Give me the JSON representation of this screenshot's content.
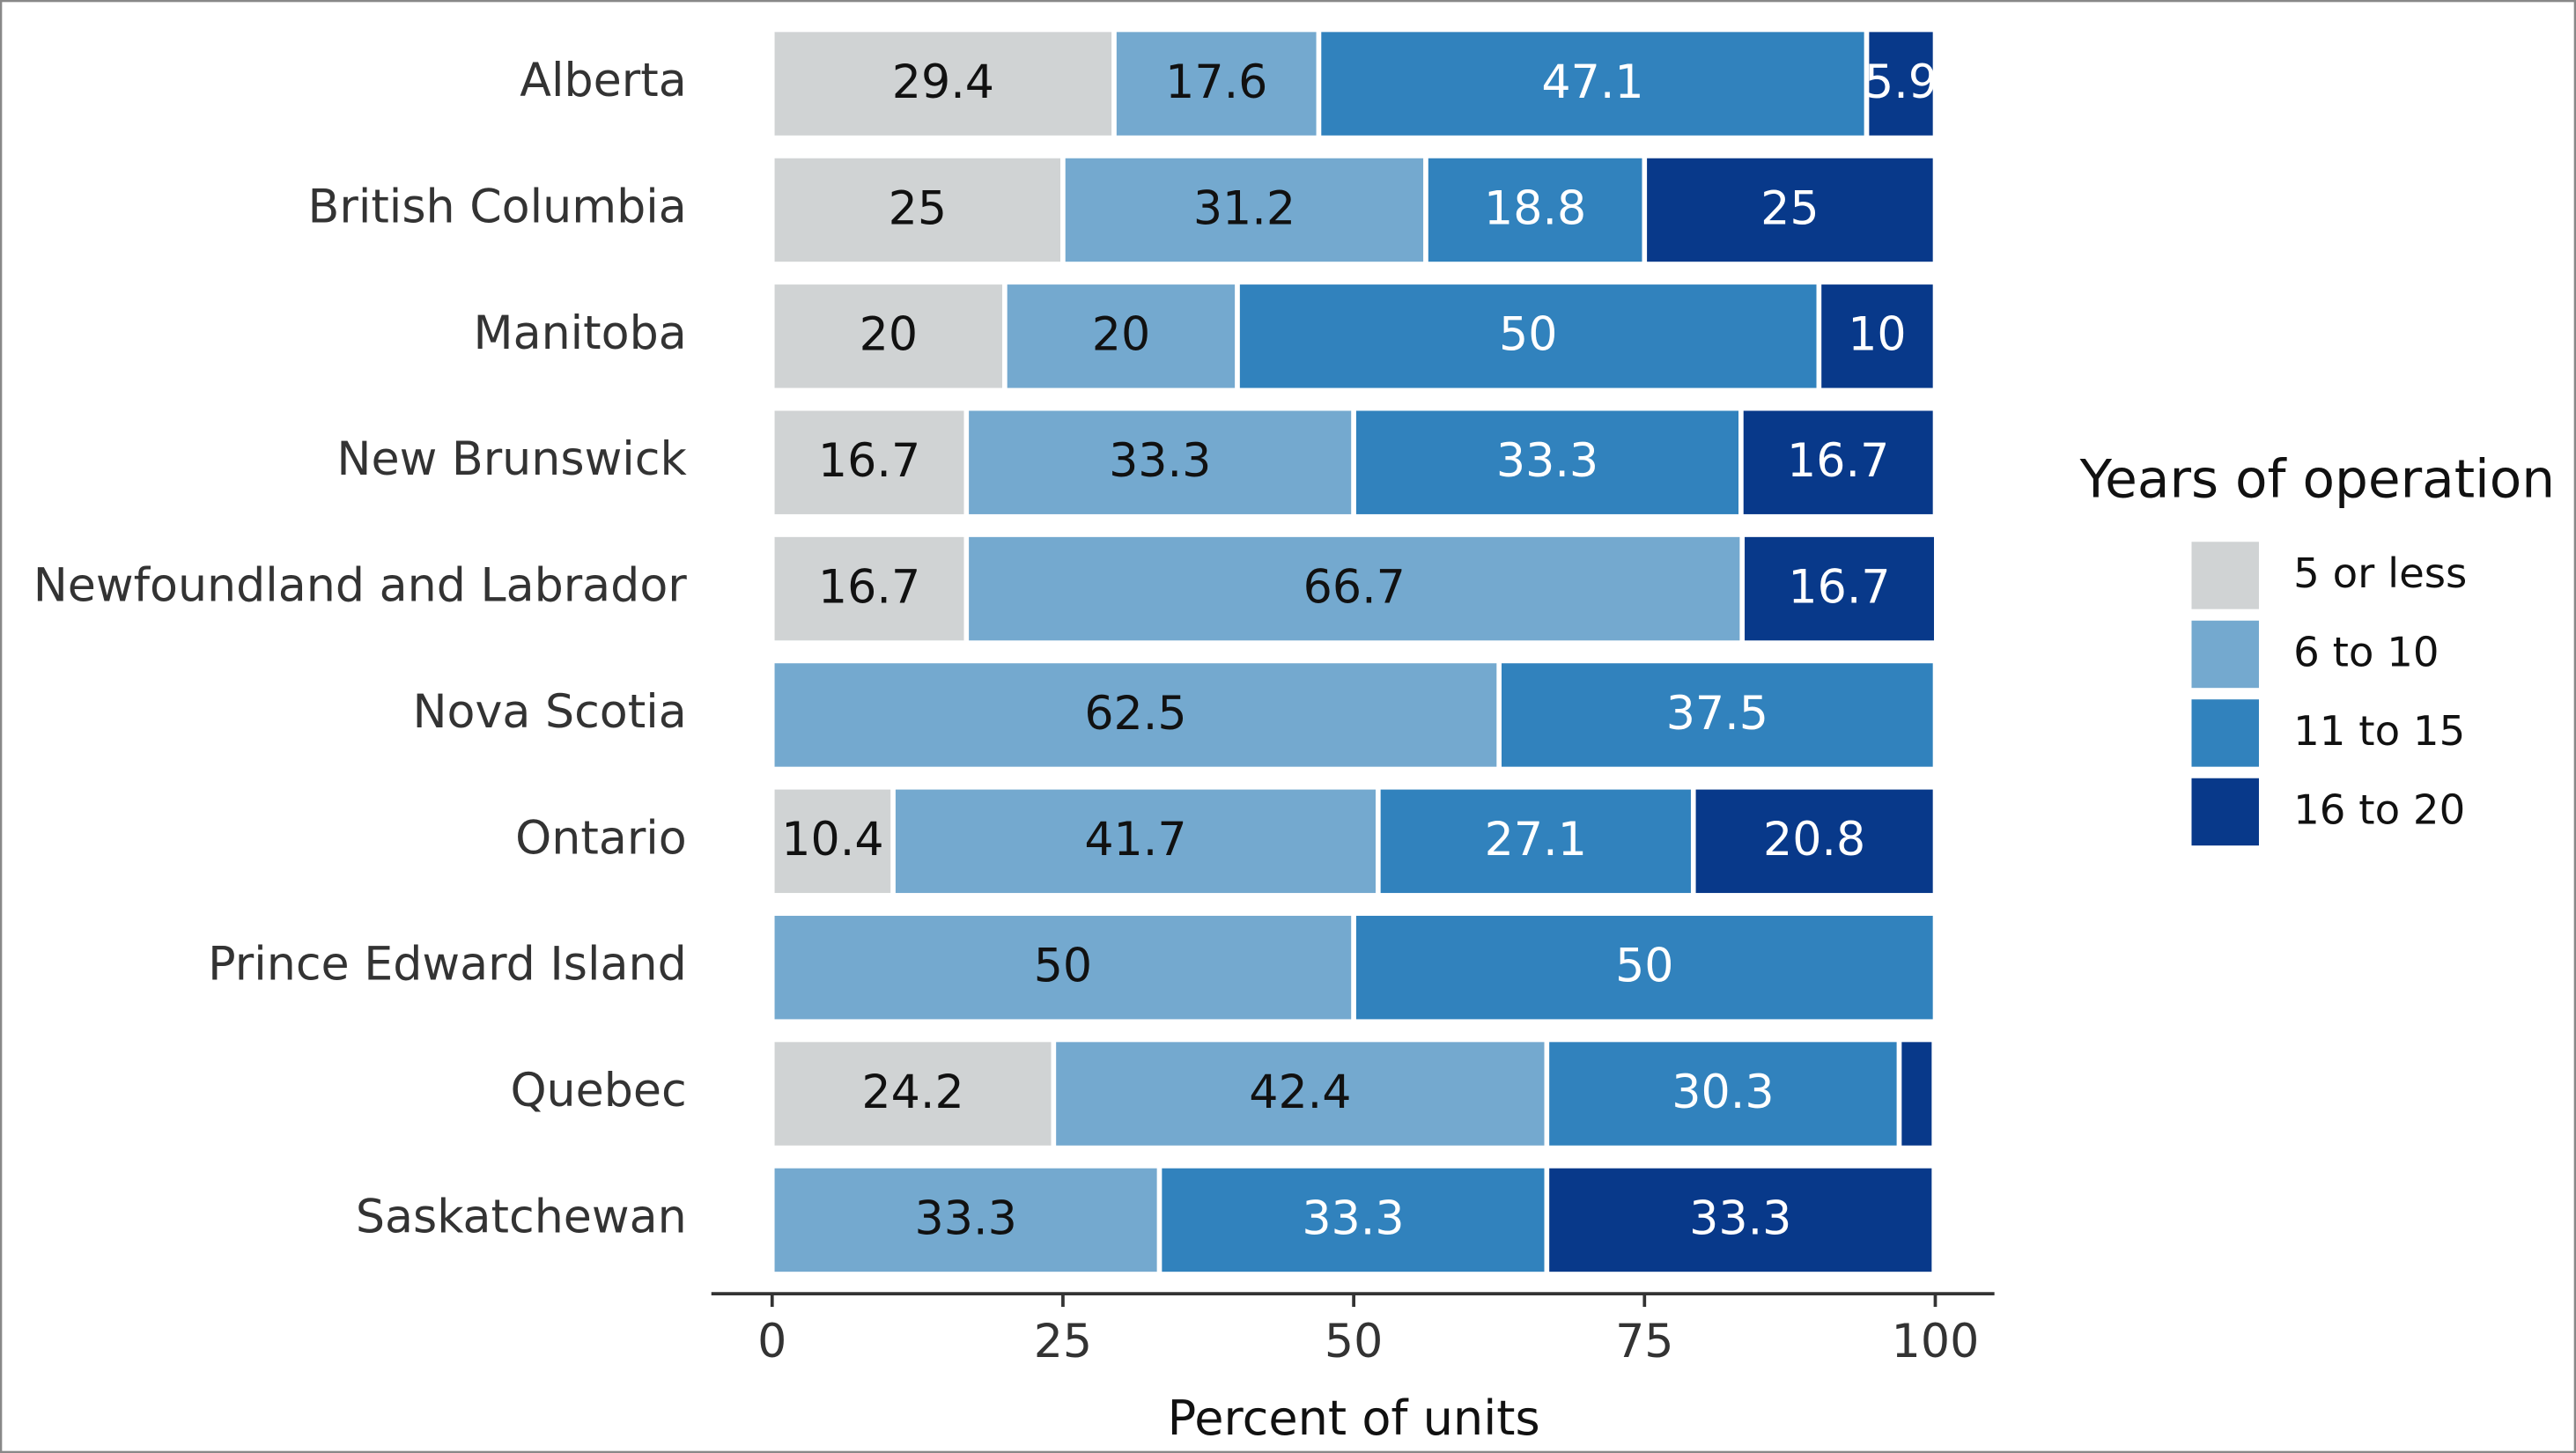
{
  "chart_data": {
    "type": "stacked-barh",
    "x_label": "Percent of units",
    "legend_title": "Years of operation",
    "legend": "right",
    "categories": [
      "Alberta",
      "British Columbia",
      "Manitoba",
      "New Brunswick",
      "Newfoundland and Labrador",
      "Nova Scotia",
      "Ontario",
      "Prince Edward Island",
      "Quebec",
      "Saskatchewan"
    ],
    "series": [
      {
        "name": "5 or less",
        "color": "#d0d3d4",
        "values": [
          29.4,
          25,
          20,
          16.7,
          16.7,
          null,
          10.4,
          null,
          24.2,
          null
        ]
      },
      {
        "name": "6 to 10",
        "color": "#74a9cf",
        "values": [
          17.6,
          31.2,
          20,
          33.3,
          66.7,
          62.5,
          41.7,
          50,
          42.4,
          33.3
        ]
      },
      {
        "name": "11 to 15",
        "color": "#3182bd",
        "values": [
          47.1,
          18.8,
          50,
          33.3,
          null,
          37.5,
          27.1,
          50,
          30.3,
          33.3
        ]
      },
      {
        "name": "16 to 20",
        "color": "#08398a",
        "values": [
          5.9,
          25,
          10,
          16.7,
          16.7,
          null,
          20.8,
          null,
          3,
          33.3
        ]
      }
    ],
    "xlim": [
      0,
      100
    ],
    "xticks": [
      0,
      25,
      50,
      75,
      100
    ]
  }
}
